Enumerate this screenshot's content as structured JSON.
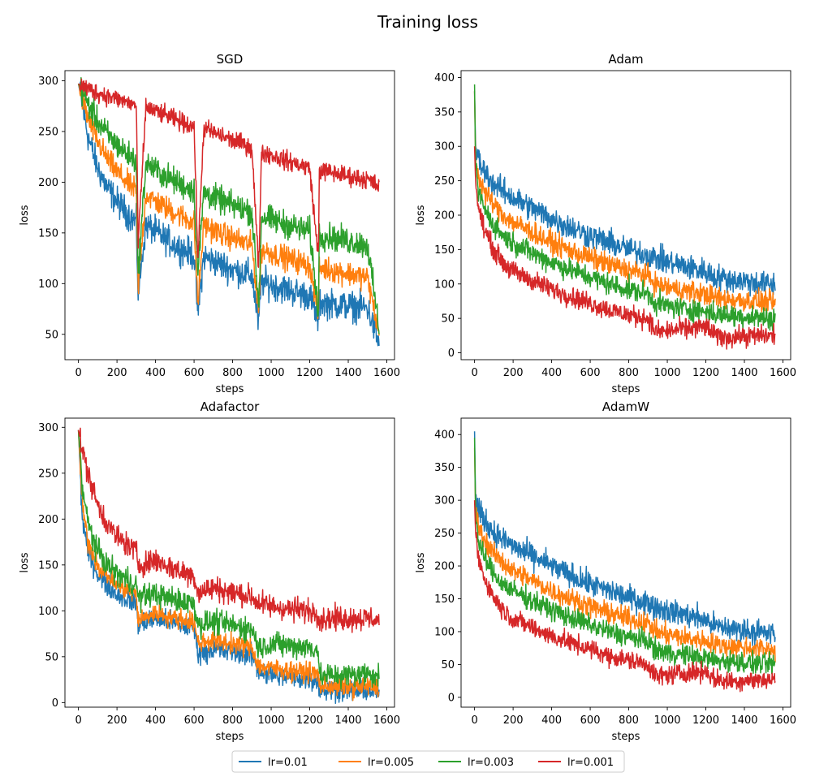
{
  "figure": {
    "title": "Training loss",
    "legend_location": "bottom-center"
  },
  "series_styles": [
    {
      "name": "lr=0.01",
      "color": "#1f77b4"
    },
    {
      "name": "lr=0.005",
      "color": "#ff7f0e"
    },
    {
      "name": "lr=0.003",
      "color": "#2ca02c"
    },
    {
      "name": "lr=0.001",
      "color": "#d62728"
    }
  ],
  "chart_data": [
    {
      "type": "line",
      "title": "SGD",
      "xlabel": "steps",
      "ylabel": "loss",
      "xlim": [
        -70,
        1640
      ],
      "ylim": [
        25,
        310
      ],
      "xticks": [
        0,
        200,
        400,
        600,
        800,
        1000,
        1200,
        1400,
        1600
      ],
      "yticks": [
        50,
        100,
        150,
        200,
        250,
        300
      ],
      "grid": false,
      "x": [
        0,
        50,
        100,
        150,
        200,
        250,
        300,
        310,
        350,
        400,
        450,
        500,
        550,
        600,
        620,
        650,
        700,
        750,
        800,
        850,
        900,
        935,
        950,
        1000,
        1050,
        1100,
        1150,
        1200,
        1245,
        1250,
        1300,
        1350,
        1400,
        1450,
        1500,
        1560
      ],
      "series": [
        {
          "name": "lr=0.01",
          "noise": 11,
          "values": [
            297,
            245,
            214,
            194,
            181,
            170,
            160,
            90,
            158,
            151,
            144,
            138,
            133,
            128,
            70,
            127,
            122,
            118,
            114,
            111,
            108,
            60,
            102,
            99,
            96,
            93,
            90,
            88,
            62,
            82,
            80,
            79,
            78,
            77,
            76,
            40
          ]
        },
        {
          "name": "lr=0.005",
          "noise": 9,
          "values": [
            297,
            262,
            240,
            223,
            210,
            200,
            191,
            95,
            188,
            181,
            175,
            170,
            165,
            160,
            80,
            158,
            153,
            148,
            145,
            141,
            138,
            75,
            134,
            130,
            127,
            124,
            121,
            118,
            70,
            116,
            114,
            112,
            110,
            108,
            106,
            50
          ]
        },
        {
          "name": "lr=0.003",
          "noise": 10,
          "values": [
            297,
            277,
            260,
            247,
            237,
            228,
            221,
            110,
            219,
            212,
            206,
            201,
            196,
            192,
            110,
            190,
            185,
            181,
            177,
            174,
            171,
            78,
            166,
            163,
            160,
            157,
            154,
            152,
            72,
            148,
            146,
            144,
            142,
            140,
            138,
            55
          ]
        },
        {
          "name": "lr=0.001",
          "noise": 7,
          "values": [
            297,
            292,
            288,
            285,
            282,
            279,
            276,
            140,
            274,
            270,
            266,
            262,
            258,
            255,
            125,
            253,
            249,
            245,
            241,
            238,
            234,
            115,
            230,
            227,
            223,
            220,
            217,
            214,
            125,
            212,
            210,
            208,
            206,
            204,
            203,
            195
          ]
        }
      ]
    },
    {
      "type": "line",
      "title": "Adam",
      "xlabel": "steps",
      "ylabel": "loss",
      "xlim": [
        -70,
        1640
      ],
      "ylim": [
        -10,
        410
      ],
      "xticks": [
        0,
        200,
        400,
        600,
        800,
        1000,
        1200,
        1400,
        1600
      ],
      "yticks": [
        0,
        50,
        100,
        150,
        200,
        250,
        300,
        350,
        400
      ],
      "grid": false,
      "x": [
        0,
        5,
        20,
        50,
        100,
        150,
        200,
        300,
        400,
        500,
        600,
        700,
        800,
        900,
        940,
        1000,
        1100,
        1200,
        1250,
        1300,
        1400,
        1500,
        1560
      ],
      "series": [
        {
          "name": "lr=0.01",
          "noise": 14,
          "values": [
            380,
            300,
            280,
            265,
            245,
            235,
            225,
            210,
            195,
            182,
            170,
            160,
            150,
            142,
            138,
            132,
            125,
            118,
            110,
            108,
            104,
            100,
            98
          ]
        },
        {
          "name": "lr=0.005",
          "noise": 12,
          "values": [
            380,
            280,
            255,
            235,
            215,
            200,
            190,
            175,
            160,
            148,
            138,
            128,
            120,
            112,
            100,
            95,
            90,
            85,
            80,
            78,
            76,
            74,
            72
          ]
        },
        {
          "name": "lr=0.003",
          "noise": 12,
          "values": [
            390,
            270,
            235,
            210,
            185,
            170,
            160,
            145,
            132,
            120,
            110,
            100,
            92,
            86,
            72,
            68,
            64,
            60,
            56,
            55,
            53,
            51,
            50
          ]
        },
        {
          "name": "lr=0.001",
          "noise": 11,
          "values": [
            300,
            250,
            210,
            180,
            150,
            130,
            118,
            105,
            92,
            82,
            72,
            62,
            55,
            50,
            30,
            32,
            35,
            38,
            25,
            22,
            24,
            25,
            25
          ]
        }
      ]
    },
    {
      "type": "line",
      "title": "Adafactor",
      "xlabel": "steps",
      "ylabel": "loss",
      "xlim": [
        -70,
        1640
      ],
      "ylim": [
        -5,
        310
      ],
      "xticks": [
        0,
        200,
        400,
        600,
        800,
        1000,
        1200,
        1400,
        1600
      ],
      "yticks": [
        0,
        50,
        100,
        150,
        200,
        250,
        300
      ],
      "grid": false,
      "x": [
        0,
        20,
        50,
        100,
        150,
        200,
        300,
        310,
        400,
        500,
        600,
        620,
        700,
        800,
        900,
        935,
        1000,
        1100,
        1200,
        1245,
        1250,
        1300,
        1400,
        1500,
        1560
      ],
      "series": [
        {
          "name": "lr=0.01",
          "noise": 9,
          "values": [
            297,
            200,
            165,
            140,
            128,
            118,
            108,
            85,
            92,
            86,
            82,
            55,
            58,
            55,
            52,
            35,
            30,
            28,
            26,
            24,
            14,
            14,
            13,
            13,
            12
          ]
        },
        {
          "name": "lr=0.005",
          "noise": 8,
          "values": [
            297,
            215,
            175,
            150,
            138,
            128,
            118,
            90,
            98,
            92,
            88,
            65,
            68,
            64,
            60,
            40,
            37,
            35,
            33,
            31,
            18,
            18,
            17,
            17,
            16
          ]
        },
        {
          "name": "lr=0.003",
          "noise": 10,
          "values": [
            297,
            235,
            195,
            165,
            150,
            140,
            128,
            115,
            118,
            112,
            108,
            85,
            88,
            84,
            80,
            60,
            64,
            62,
            60,
            58,
            28,
            30,
            30,
            32,
            30
          ]
        },
        {
          "name": "lr=0.001",
          "noise": 10,
          "values": [
            297,
            275,
            250,
            215,
            195,
            180,
            165,
            150,
            155,
            145,
            138,
            120,
            125,
            120,
            115,
            108,
            105,
            102,
            100,
            98,
            90,
            92,
            92,
            92,
            90
          ]
        }
      ]
    },
    {
      "type": "line",
      "title": "AdamW",
      "xlabel": "steps",
      "ylabel": "loss",
      "xlim": [
        -70,
        1640
      ],
      "ylim": [
        -15,
        425
      ],
      "xticks": [
        0,
        200,
        400,
        600,
        800,
        1000,
        1200,
        1400,
        1600
      ],
      "yticks": [
        0,
        50,
        100,
        150,
        200,
        250,
        300,
        350,
        400
      ],
      "grid": false,
      "x": [
        0,
        5,
        20,
        50,
        100,
        150,
        200,
        300,
        400,
        500,
        600,
        700,
        800,
        900,
        940,
        1000,
        1100,
        1200,
        1250,
        1300,
        1400,
        1500,
        1560
      ],
      "series": [
        {
          "name": "lr=0.01",
          "noise": 14,
          "values": [
            405,
            300,
            285,
            270,
            250,
            240,
            230,
            215,
            200,
            185,
            172,
            162,
            152,
            144,
            138,
            132,
            125,
            118,
            108,
            106,
            102,
            98,
            96
          ]
        },
        {
          "name": "lr=0.005",
          "noise": 12,
          "values": [
            380,
            285,
            260,
            240,
            218,
            205,
            193,
            178,
            162,
            150,
            138,
            128,
            120,
            112,
            100,
            95,
            90,
            86,
            80,
            78,
            76,
            74,
            72
          ]
        },
        {
          "name": "lr=0.003",
          "noise": 12,
          "values": [
            395,
            275,
            238,
            212,
            188,
            172,
            162,
            147,
            133,
            121,
            110,
            100,
            92,
            86,
            72,
            68,
            64,
            60,
            56,
            55,
            53,
            51,
            50
          ]
        },
        {
          "name": "lr=0.001",
          "noise": 11,
          "values": [
            300,
            252,
            212,
            182,
            152,
            132,
            120,
            106,
            93,
            83,
            73,
            63,
            56,
            50,
            32,
            34,
            37,
            40,
            27,
            24,
            26,
            27,
            27
          ]
        }
      ]
    }
  ]
}
